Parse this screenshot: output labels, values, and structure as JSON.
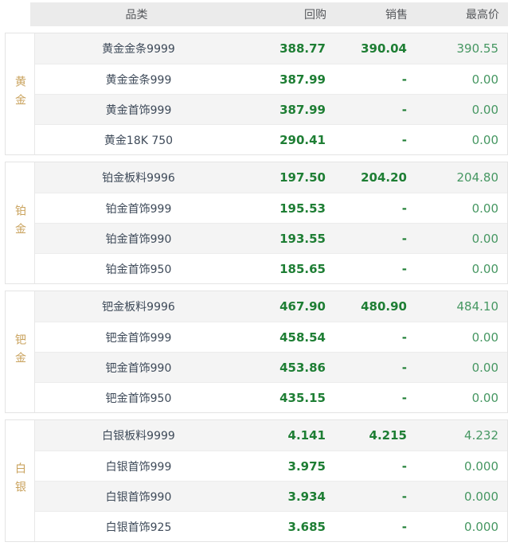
{
  "table": {
    "headers": {
      "category": "品类",
      "buyback": "回购",
      "sale": "销售",
      "high": "最高价"
    },
    "sections": [
      {
        "group": "黄金",
        "rows": [
          {
            "name": "黄金金条9999",
            "buyback": "388.77",
            "sale": "390.04",
            "high": "390.55"
          },
          {
            "name": "黄金金条999",
            "buyback": "387.99",
            "sale": "-",
            "high": "0.00"
          },
          {
            "name": "黄金首饰999",
            "buyback": "387.99",
            "sale": "-",
            "high": "0.00"
          },
          {
            "name": "黄金18K 750",
            "buyback": "290.41",
            "sale": "-",
            "high": "0.00"
          }
        ]
      },
      {
        "group": "铂金",
        "rows": [
          {
            "name": "铂金板料9996",
            "buyback": "197.50",
            "sale": "204.20",
            "high": "204.80"
          },
          {
            "name": "铂金首饰999",
            "buyback": "195.53",
            "sale": "-",
            "high": "0.00"
          },
          {
            "name": "铂金首饰990",
            "buyback": "193.55",
            "sale": "-",
            "high": "0.00"
          },
          {
            "name": "铂金首饰950",
            "buyback": "185.65",
            "sale": "-",
            "high": "0.00"
          }
        ]
      },
      {
        "group": "钯金",
        "rows": [
          {
            "name": "钯金板料9996",
            "buyback": "467.90",
            "sale": "480.90",
            "high": "484.10"
          },
          {
            "name": "钯金首饰999",
            "buyback": "458.54",
            "sale": "-",
            "high": "0.00"
          },
          {
            "name": "钯金首饰990",
            "buyback": "453.86",
            "sale": "-",
            "high": "0.00"
          },
          {
            "name": "钯金首饰950",
            "buyback": "435.15",
            "sale": "-",
            "high": "0.00"
          }
        ]
      },
      {
        "group": "白银",
        "rows": [
          {
            "name": "白银板料9999",
            "buyback": "4.141",
            "sale": "4.215",
            "high": "4.232"
          },
          {
            "name": "白银首饰999",
            "buyback": "3.975",
            "sale": "-",
            "high": "0.000"
          },
          {
            "name": "白银首饰990",
            "buyback": "3.934",
            "sale": "-",
            "high": "0.000"
          },
          {
            "name": "白银首饰925",
            "buyback": "3.685",
            "sale": "-",
            "high": "0.000"
          }
        ]
      }
    ]
  },
  "colors": {
    "header_bg": "#ebebeb",
    "row_alt_bg": "#f4f4f4",
    "price_bold_green": "#1e7e34",
    "price_light_green": "#469762",
    "group_label_gold": "#c9a25c",
    "name_text": "#3e4a59"
  }
}
